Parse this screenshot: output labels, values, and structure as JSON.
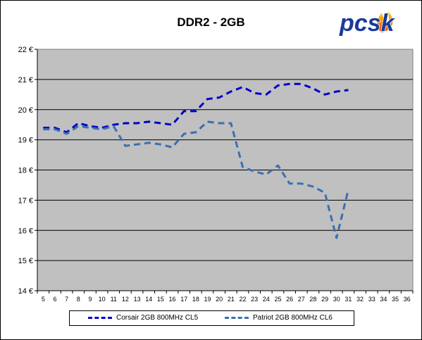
{
  "chart_data": {
    "type": "line",
    "title": "DDR2 - 2GB",
    "xlabel": "",
    "ylabel": "",
    "x": [
      5,
      6,
      7,
      8,
      9,
      10,
      11,
      12,
      13,
      14,
      15,
      16,
      17,
      18,
      19,
      20,
      21,
      22,
      23,
      24,
      25,
      26,
      27,
      28,
      29,
      30,
      31,
      32,
      33,
      34,
      35,
      36
    ],
    "xlim": [
      5,
      36
    ],
    "ylim": [
      14,
      22
    ],
    "ytick_labels": [
      "14 €",
      "15 €",
      "16 €",
      "17 €",
      "18 €",
      "19 €",
      "20 €",
      "21 €",
      "22 €"
    ],
    "grid": "horizontal",
    "background": "#c0c0c0",
    "legend_position": "bottom",
    "series": [
      {
        "name": "Corsair 2GB 800MHz CL5",
        "color": "#0000cc",
        "x": [
          5,
          6,
          7,
          8,
          9,
          10,
          11,
          12,
          13,
          14,
          15,
          16,
          17,
          18,
          19,
          20,
          21,
          22,
          23,
          24,
          25,
          26,
          27,
          28,
          29,
          30,
          31
        ],
        "values": [
          19.4,
          19.4,
          19.25,
          19.55,
          19.45,
          19.4,
          19.5,
          19.55,
          19.55,
          19.6,
          19.55,
          19.5,
          19.95,
          19.95,
          20.35,
          20.4,
          20.6,
          20.75,
          20.55,
          20.5,
          20.8,
          20.85,
          20.85,
          20.7,
          20.5,
          20.6,
          20.65
        ]
      },
      {
        "name": "Patriot 2GB 800MHz CL6",
        "color": "#3b6fb0",
        "x": [
          5,
          6,
          7,
          8,
          9,
          10,
          11,
          12,
          13,
          14,
          15,
          16,
          17,
          18,
          19,
          20,
          21,
          22,
          23,
          24,
          25,
          26,
          27,
          28,
          29,
          30,
          31
        ],
        "values": [
          19.35,
          19.35,
          19.2,
          19.45,
          19.4,
          19.35,
          19.45,
          18.8,
          18.85,
          18.9,
          18.85,
          18.75,
          19.2,
          19.25,
          19.6,
          19.55,
          19.55,
          18.1,
          17.95,
          17.85,
          18.15,
          17.55,
          17.55,
          17.45,
          17.25,
          15.75,
          17.35
        ]
      }
    ]
  },
  "logo": {
    "text": "pcsk"
  }
}
